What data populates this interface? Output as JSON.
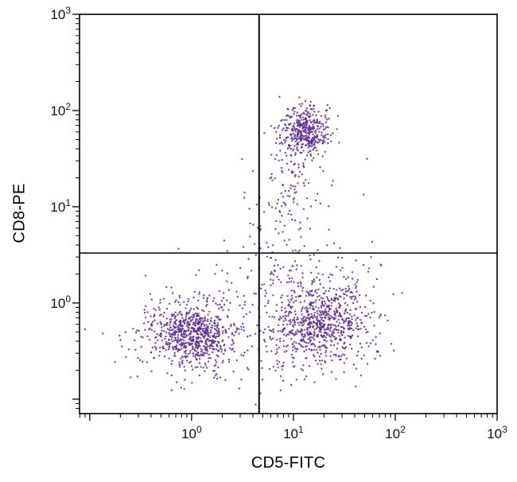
{
  "chart_data": {
    "type": "scatter",
    "title": "",
    "xlabel": "CD5-FITC",
    "ylabel": "CD8-PE",
    "xscale": "log",
    "yscale": "log",
    "tick_base": "10",
    "x_major_tick_exponents": [
      0,
      1,
      2,
      3
    ],
    "y_major_tick_exponents": [
      0,
      1,
      2,
      3
    ],
    "xlim_log": [
      -1.1,
      3.0
    ],
    "ylim_log": [
      -1.15,
      3.0
    ],
    "grid": false,
    "legend": false,
    "quadrant_gate": {
      "x": 4.6,
      "y": 3.3
    },
    "dot_color": "#5b2a8e",
    "axis_color": "#000000",
    "background_color": "#ffffff",
    "clusters": [
      {
        "label": "CD5+CD8+ double-positive (upper right quadrant)",
        "cx_log": 1.12,
        "cy_log": 1.78,
        "sx": 0.12,
        "sy": 0.13,
        "n": 400
      },
      {
        "label": "upper cluster lower tail",
        "cx_log": 1.02,
        "cy_log": 1.35,
        "sx": 0.14,
        "sy": 0.3,
        "n": 80
      },
      {
        "label": "gate-line bridge scatter",
        "cx_log": 0.8,
        "cy_log": 0.7,
        "sx": 0.15,
        "sy": 0.35,
        "n": 60
      },
      {
        "label": "CD5-CD8- double-negative core (lower left)",
        "cx_log": 0.02,
        "cy_log": -0.33,
        "sx": 0.18,
        "sy": 0.15,
        "n": 600
      },
      {
        "label": "lower left halo",
        "cx_log": -0.02,
        "cy_log": -0.32,
        "sx": 0.35,
        "sy": 0.27,
        "n": 220
      },
      {
        "label": "CD5+CD8- single-positive core (lower right)",
        "cx_log": 1.27,
        "cy_log": -0.2,
        "sx": 0.22,
        "sy": 0.2,
        "n": 650
      },
      {
        "label": "lower right halo",
        "cx_log": 1.22,
        "cy_log": -0.05,
        "sx": 0.35,
        "sy": 0.38,
        "n": 200
      },
      {
        "label": "inter-cluster sparse scatter",
        "cx_log": 0.65,
        "cy_log": -0.25,
        "sx": 0.35,
        "sy": 0.3,
        "n": 80
      },
      {
        "label": "stray points",
        "cx_log": 1.2,
        "cy_log": 0.9,
        "sx": 0.5,
        "sy": 0.5,
        "n": 25
      }
    ]
  }
}
